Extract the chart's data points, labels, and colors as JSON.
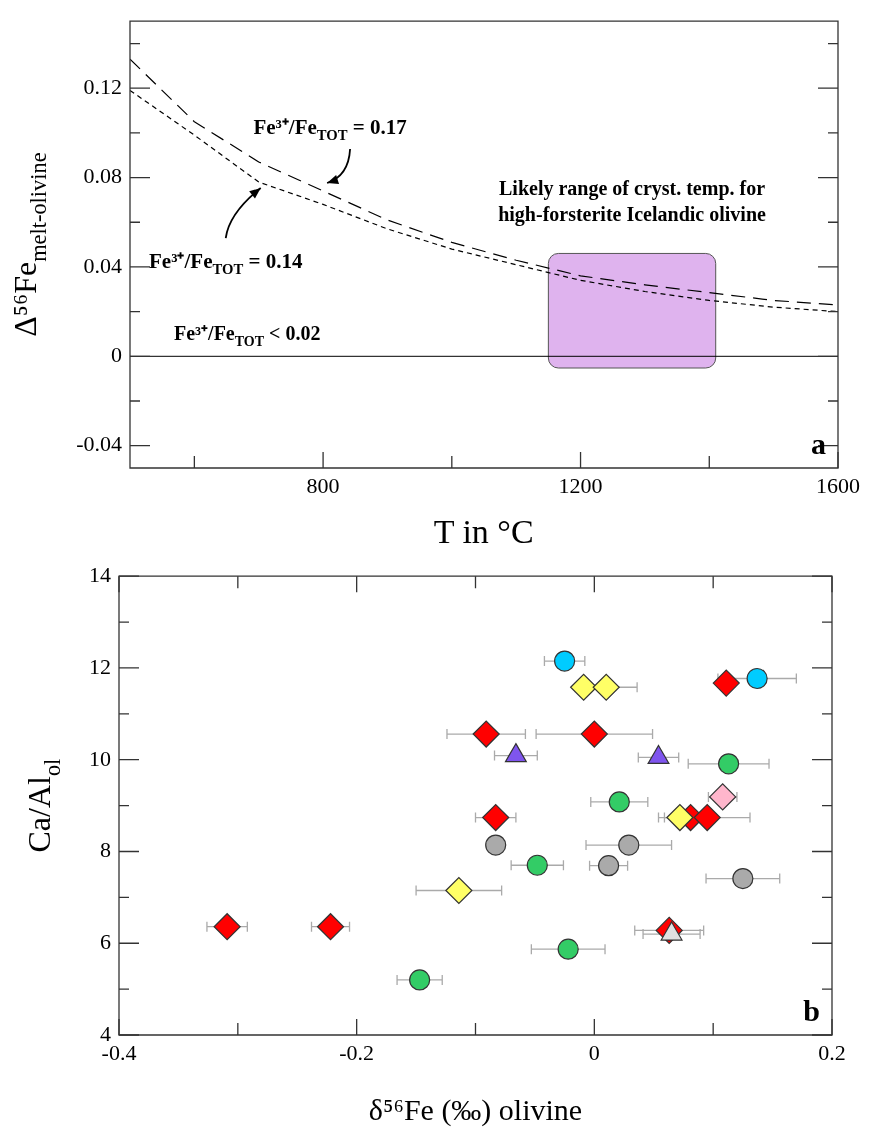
{
  "chart_data": [
    {
      "type": "line",
      "xlabel": "T in °C",
      "ylabel": "Δ⁵⁶Fe$_{melt-olivine}$",
      "x": [
        500,
        600,
        700,
        800,
        900,
        1000,
        1100,
        1200,
        1300,
        1400,
        1500,
        1600
      ],
      "series": [
        {
          "name": "Fe³⁺/Fe$_{TOT}$ = 0.17",
          "color": "#000000",
          "line_style": "dashed",
          "values": [
            0.133,
            0.105,
            0.087,
            0.074,
            0.061,
            0.051,
            0.043,
            0.036,
            0.032,
            0.0285,
            0.025,
            0.023
          ]
        },
        {
          "name": "Fe³⁺/Fe$_{TOT}$ = 0.14",
          "color": "#000000",
          "line_style": "dotted",
          "values": [
            0.119,
            0.099,
            0.078,
            0.068,
            0.057,
            0.048,
            0.041,
            0.034,
            0.029,
            0.025,
            0.022,
            0.02
          ]
        }
      ],
      "xlim": [
        500,
        1600
      ],
      "xticks": [
        {
          "value": 600,
          "label": null
        },
        800,
        {
          "value": 1000,
          "label": null
        },
        1200,
        {
          "value": 1400,
          "label": null
        },
        1600
      ],
      "ylim": [
        -0.05,
        0.15
      ],
      "yticks": [
        -0.04,
        {
          "value": -0.02,
          "label": null
        },
        0,
        {
          "value": 0.02,
          "label": null
        },
        0.04,
        {
          "value": 0.06,
          "label": null
        },
        0.08,
        {
          "value": 0.1,
          "label": null
        },
        0.12,
        {
          "value": 0.14,
          "label": null
        }
      ],
      "ref_lines": [
        {
          "axis": "y",
          "value": 0,
          "label": "Fe³⁺/Fe$_{TOT}$ < 0.02",
          "color": "#000000"
        }
      ],
      "bands": [
        {
          "axis": "x",
          "from": 1150,
          "to": 1410,
          "label": "Likely range of cryst. temp. for high-forsterite Icelandic olivine",
          "color": "#dfb3ee"
        }
      ],
      "annotations": [
        "a"
      ],
      "marker": "none",
      "legend": false,
      "grid": false
    },
    {
      "type": "scatter",
      "xlabel": "δ⁵⁶Fe (‰) olivine",
      "ylabel": "Ca/Al$_{ol}$",
      "series": [
        {
          "color": "#ff0000",
          "marker": "diamond",
          "x": [
            -0.309,
            -0.222,
            -0.091,
            0.0,
            0.111,
            -0.083,
            0.081,
            0.095,
            0.063
          ],
          "values": [
            6.36,
            6.36,
            10.56,
            10.56,
            11.67,
            8.74,
            8.74,
            8.74,
            6.28
          ],
          "xerrors": [
            0.017,
            0.016,
            0.033,
            0.049,
            0.007,
            0.017,
            null,
            0.036,
            0.029
          ]
        },
        {
          "color": "#ffff66",
          "marker": "diamond",
          "x": [
            -0.114,
            -0.009,
            0.01,
            0.072
          ],
          "values": [
            7.15,
            11.58,
            11.58,
            8.74
          ],
          "xerrors": [
            0.036,
            null,
            0.026,
            0.018
          ]
        },
        {
          "color": "#ffb6cc",
          "marker": "diamond",
          "x": [
            0.108
          ],
          "values": [
            9.19
          ],
          "xerrors": [
            0.012
          ]
        },
        {
          "color": "#33cc66",
          "marker": "circle",
          "x": [
            -0.147,
            -0.048,
            -0.022,
            0.021,
            0.113
          ],
          "values": [
            5.2,
            7.7,
            5.87,
            9.08,
            9.91
          ],
          "xerrors": [
            0.019,
            0.022,
            0.031,
            0.024,
            0.034
          ]
        },
        {
          "color": "#aaaaaa",
          "marker": "circle",
          "x": [
            -0.083,
            0.029,
            0.012,
            0.125
          ],
          "values": [
            8.14,
            8.14,
            7.69,
            7.41
          ],
          "xerrors": [
            null,
            0.036,
            0.016,
            0.031
          ]
        },
        {
          "color": "#00ccff",
          "marker": "circle",
          "x": [
            -0.025,
            0.137
          ],
          "values": [
            12.15,
            11.77
          ],
          "xerrors": [
            0.017,
            0.033
          ]
        },
        {
          "color": "#7f55ee",
          "marker": "triangle",
          "x": [
            -0.066,
            0.054
          ],
          "values": [
            10.09,
            10.05
          ],
          "xerrors": [
            0.018,
            0.017
          ]
        },
        {
          "color": "#e0e0e0",
          "marker": "triangle",
          "x": [
            0.065
          ],
          "values": [
            6.2
          ],
          "xerrors": [
            0.024
          ]
        }
      ],
      "xlim": [
        -0.4,
        0.2
      ],
      "xticks": [
        -0.4,
        {
          "value": -0.3,
          "label": null
        },
        -0.2,
        {
          "value": -0.1,
          "label": null
        },
        0,
        {
          "value": 0.1,
          "label": null
        },
        0.2
      ],
      "ylim": [
        4,
        14
      ],
      "yticks": [
        4,
        {
          "value": 5,
          "label": null
        },
        6,
        {
          "value": 7,
          "label": null
        },
        8,
        {
          "value": 9,
          "label": null
        },
        10,
        {
          "value": 11,
          "label": null
        },
        12,
        {
          "value": 13,
          "label": null
        },
        14
      ],
      "annotations": [
        "b"
      ],
      "legend": false,
      "grid": false
    }
  ]
}
